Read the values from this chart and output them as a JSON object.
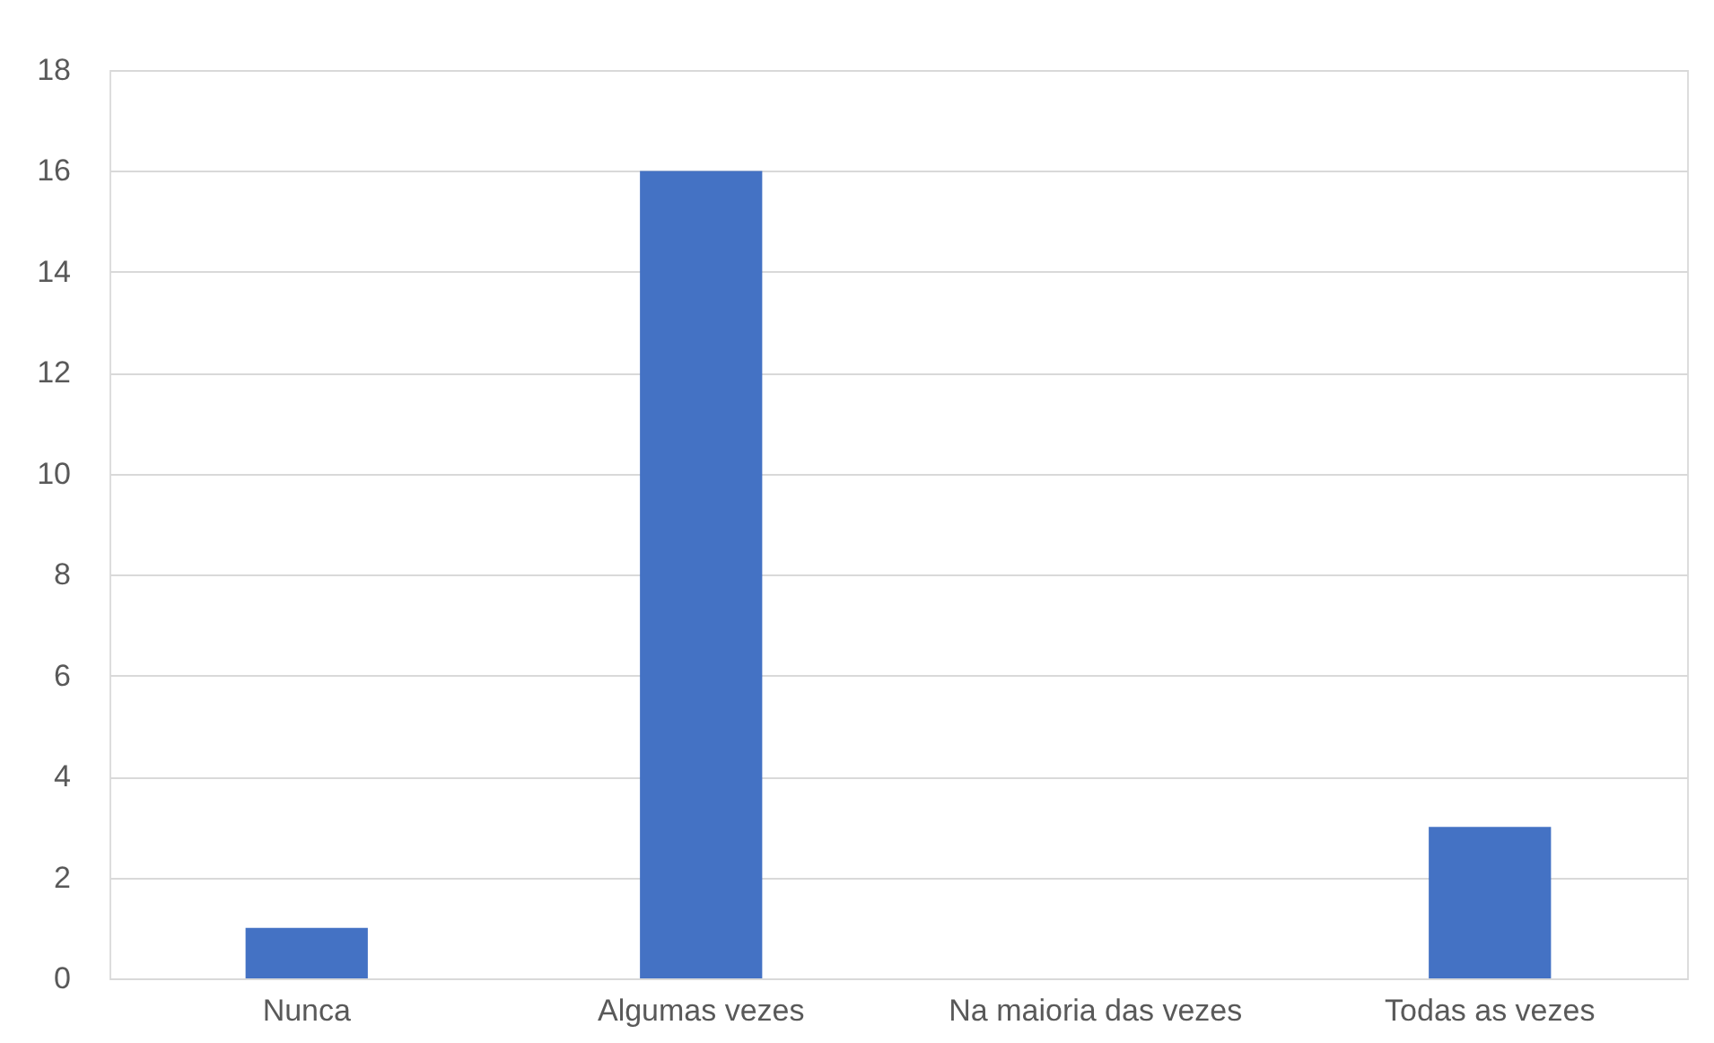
{
  "chart_data": {
    "type": "bar",
    "categories": [
      "Nunca",
      "Algumas vezes",
      "Na maioria das vezes",
      "Todas as vezes"
    ],
    "values": [
      1,
      16,
      0,
      3
    ],
    "color": "#4472c4",
    "ylim": [
      0,
      18
    ],
    "yticks": [
      0,
      2,
      4,
      6,
      8,
      10,
      12,
      14,
      16,
      18
    ],
    "grid": "y"
  }
}
